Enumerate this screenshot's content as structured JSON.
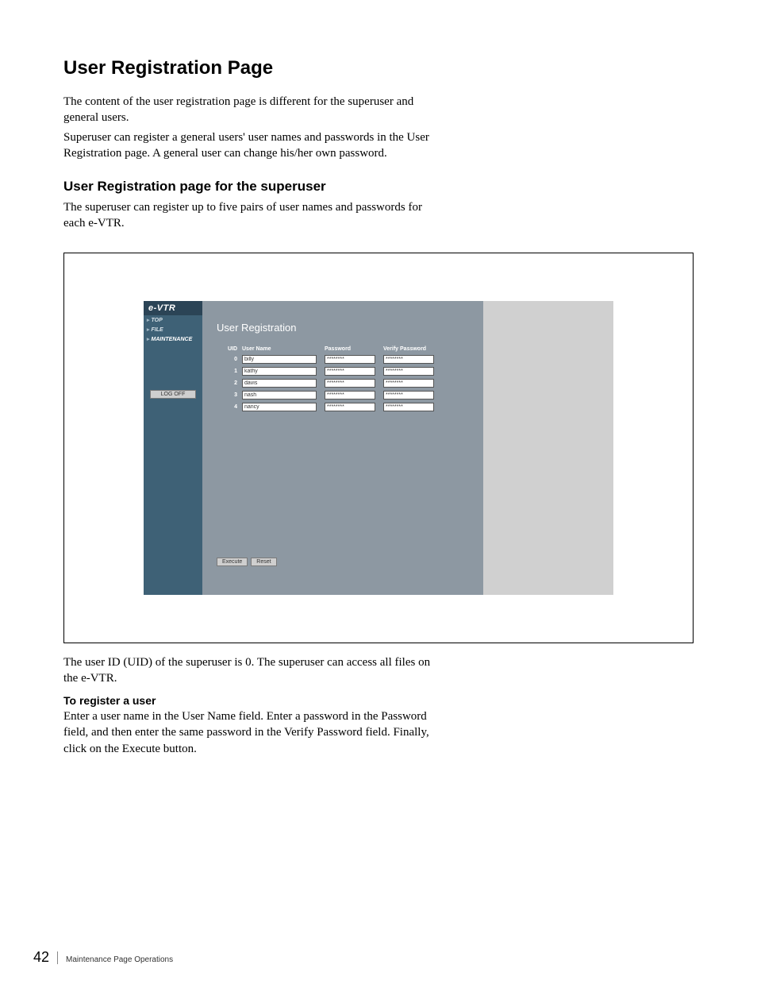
{
  "doc": {
    "heading1": "User Registration Page",
    "intro_p1": "The content of the user registration page is different for the superuser and general users.",
    "intro_p2": "Superuser can register a general users' user names and passwords in the User Registration page. A general user can change his/her own password.",
    "heading2": "User Registration page for the superuser",
    "sub_p1": "The superuser can register up to five pairs of user names and passwords for each e-VTR.",
    "after_p1": "The user ID (UID) of the superuser is 0. The superuser can access all files on the e-VTR.",
    "heading3": "To register a user",
    "after_p2": "Enter a user name in the User Name field. Enter a password in the Password field, and then enter the same password in the Verify Password field. Finally, click on the Execute button."
  },
  "app": {
    "logo": "e-VTR",
    "nav": {
      "top": "TOP",
      "file": "FILE",
      "maintenance": "MAINTENANCE"
    },
    "logoff": "LOG OFF",
    "title": "User Registration",
    "headers": {
      "uid": "UID",
      "username": "User Name",
      "password": "Password",
      "verify": "Verify Password"
    },
    "rows": [
      {
        "uid": "0",
        "name": "billy",
        "pass": "********",
        "verify": "********"
      },
      {
        "uid": "1",
        "name": "kathy",
        "pass": "********",
        "verify": "********"
      },
      {
        "uid": "2",
        "name": "davis",
        "pass": "********",
        "verify": "********"
      },
      {
        "uid": "3",
        "name": "nash",
        "pass": "********",
        "verify": "********"
      },
      {
        "uid": "4",
        "name": "nancy",
        "pass": "********",
        "verify": "********"
      }
    ],
    "buttons": {
      "execute": "Execute",
      "reset": "Reset"
    }
  },
  "footer": {
    "page_number": "42",
    "section": "Maintenance Page Operations"
  },
  "colors": {
    "sidebar_bg": "#3e6176",
    "sidebar_header_bg": "#2b4456",
    "content_bg": "#8d98a2",
    "right_panel_bg": "#d0d0d0",
    "button_bg": "#cfcfcf"
  }
}
